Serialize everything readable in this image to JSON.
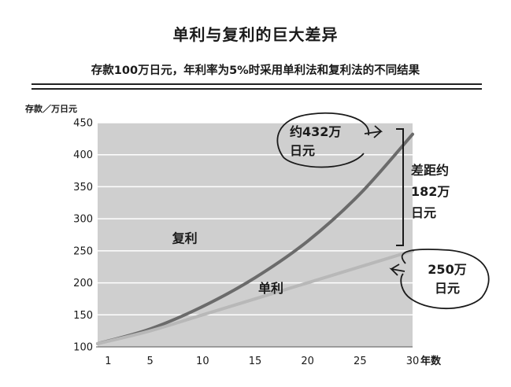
{
  "chart_data": {
    "type": "line",
    "title": "单利与复利的巨大差异",
    "subtitle": "存款100万日元，年利率为5%时采用单利法和复利法的不同结果",
    "ylabel": "存款／万日元",
    "xlabel": "年数",
    "xlim": [
      0,
      30
    ],
    "ylim": [
      100,
      450
    ],
    "x_ticks": [
      1,
      5,
      10,
      15,
      20,
      25,
      30
    ],
    "y_ticks": [
      100,
      150,
      200,
      250,
      300,
      350,
      400,
      450
    ],
    "grid": true,
    "series": [
      {
        "name": "复利",
        "color": "#6b6b6b",
        "x": [
          0,
          5,
          10,
          15,
          20,
          25,
          30
        ],
        "y": [
          105,
          128,
          163,
          208,
          265,
          339,
          432
        ]
      },
      {
        "name": "单利",
        "color": "#b8b8b8",
        "x": [
          0,
          5,
          10,
          15,
          20,
          25,
          30
        ],
        "y": [
          105,
          125,
          150,
          175,
          200,
          225,
          250
        ]
      }
    ],
    "annotations": {
      "compound_end": "约432万\n日元",
      "simple_end": "250万\n日元",
      "gap": "差距约\n182万\n日元"
    }
  },
  "colors": {
    "plot_background": "#cfcfcf",
    "gridline": "#ffffff",
    "text": "#1a1a1a"
  }
}
